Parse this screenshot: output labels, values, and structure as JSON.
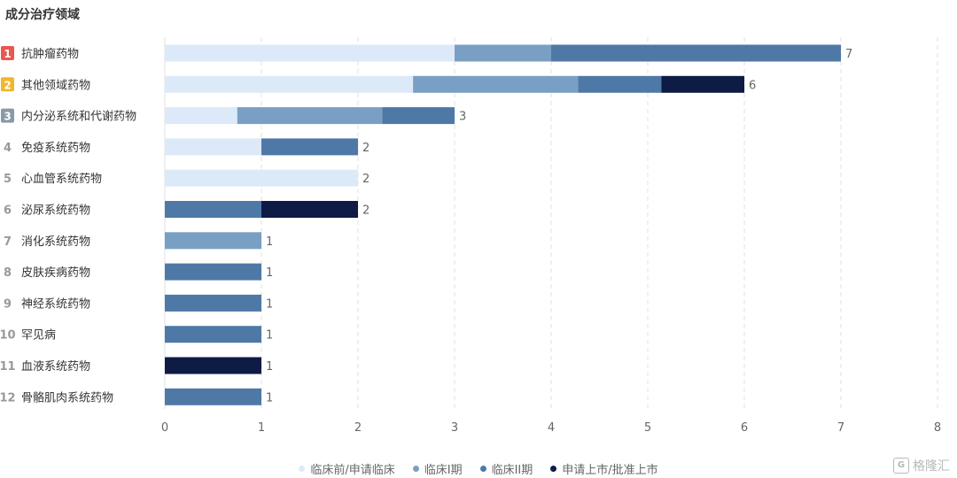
{
  "title": "成分治疗领域",
  "watermark": "格隆汇",
  "watermark_logo": "G",
  "colors": {
    "rank_top1": "#e8584f",
    "rank_top2": "#f2b62c",
    "rank_top3": "#8a9aa6",
    "rank_other": "#999999",
    "grid": "#e0e0e0",
    "axis_text": "#666666"
  },
  "chart_data": {
    "type": "bar",
    "orientation": "horizontal",
    "stacked": true,
    "title": "成分治疗领域",
    "xlim": [
      0,
      8
    ],
    "xticks": [
      0,
      1,
      2,
      3,
      4,
      5,
      6,
      7,
      8
    ],
    "grid": true,
    "legend_position": "bottom",
    "categories": [
      "抗肿瘤药物",
      "其他领域药物",
      "内分泌系统和代谢药物",
      "免疫系统药物",
      "心血管系统药物",
      "泌尿系统药物",
      "消化系统药物",
      "皮肤疾病药物",
      "神经系统药物",
      "罕见病",
      "血液系统药物",
      "骨骼肌肉系统药物"
    ],
    "ranks": [
      "1",
      "2",
      "3",
      "4",
      "5",
      "6",
      "7",
      "8",
      "9",
      "10",
      "11",
      "12"
    ],
    "totals": [
      7,
      6,
      3,
      2,
      2,
      2,
      1,
      1,
      1,
      1,
      1,
      1
    ],
    "series": [
      {
        "name": "临床前/申请临床",
        "color": "#dce9f8",
        "values": [
          3,
          2.57,
          0.75,
          1,
          2,
          0,
          0,
          0,
          0,
          0,
          0,
          0
        ]
      },
      {
        "name": "临床I期",
        "color": "#7a9fc4",
        "values": [
          1,
          1.71,
          1.5,
          0,
          0,
          0,
          1,
          0,
          0,
          0,
          0,
          0
        ]
      },
      {
        "name": "临床II期",
        "color": "#4e79a7",
        "values": [
          3,
          0.86,
          0.75,
          1,
          0,
          1,
          0,
          1,
          1,
          1,
          0,
          1
        ]
      },
      {
        "name": "申请上市/批准上市",
        "color": "#0d1b45",
        "values": [
          0,
          0.86,
          0,
          0,
          0,
          1,
          0,
          0,
          0,
          0,
          1,
          0
        ]
      }
    ]
  }
}
